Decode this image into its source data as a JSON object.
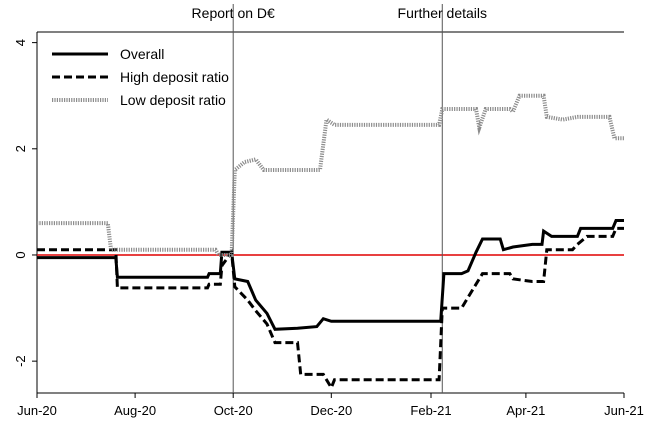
{
  "chart_data": {
    "type": "line",
    "x_ticks": [
      "Jun-20",
      "Aug-20",
      "Oct-20",
      "Dec-20",
      "Feb-21",
      "Apr-21",
      "Jun-21"
    ],
    "y_ticks": [
      "-2",
      "0",
      "2",
      "4"
    ],
    "xlim": [
      "2020-06-01",
      "2021-06-01"
    ],
    "ylim": [
      -2.6,
      4.2
    ],
    "reference_line": {
      "y": 0,
      "color": "#e00000"
    },
    "annotations": [
      {
        "x": "2020-10-01",
        "label": "Report on D€"
      },
      {
        "x": "2021-02-08",
        "label": "Further details"
      }
    ],
    "legend_position": "top-left",
    "grid": false,
    "series": [
      {
        "name": "Overall",
        "style": "solid",
        "color": "#000000",
        "points": [
          [
            "2020-06-01",
            -0.05
          ],
          [
            "2020-07-20",
            -0.05
          ],
          [
            "2020-07-21",
            -0.42
          ],
          [
            "2020-09-15",
            -0.42
          ],
          [
            "2020-09-16",
            -0.35
          ],
          [
            "2020-09-23",
            -0.35
          ],
          [
            "2020-09-24",
            0.05
          ],
          [
            "2020-09-30",
            0.05
          ],
          [
            "2020-10-02",
            -0.45
          ],
          [
            "2020-10-10",
            -0.5
          ],
          [
            "2020-10-15",
            -0.85
          ],
          [
            "2020-10-22",
            -1.1
          ],
          [
            "2020-10-27",
            -1.4
          ],
          [
            "2020-11-10",
            -1.38
          ],
          [
            "2020-11-22",
            -1.35
          ],
          [
            "2020-11-26",
            -1.2
          ],
          [
            "2020-12-01",
            -1.25
          ],
          [
            "2021-02-05",
            -1.25
          ],
          [
            "2021-02-07",
            -1.25
          ],
          [
            "2021-02-09",
            -0.35
          ],
          [
            "2021-02-20",
            -0.35
          ],
          [
            "2021-02-24",
            -0.3
          ],
          [
            "2021-03-01",
            0.05
          ],
          [
            "2021-03-05",
            0.3
          ],
          [
            "2021-03-16",
            0.3
          ],
          [
            "2021-03-18",
            0.1
          ],
          [
            "2021-03-24",
            0.15
          ],
          [
            "2021-04-05",
            0.2
          ],
          [
            "2021-04-11",
            0.2
          ],
          [
            "2021-04-12",
            0.45
          ],
          [
            "2021-04-17",
            0.35
          ],
          [
            "2021-05-03",
            0.35
          ],
          [
            "2021-05-05",
            0.5
          ],
          [
            "2021-05-25",
            0.5
          ],
          [
            "2021-05-27",
            0.65
          ],
          [
            "2021-06-01",
            0.65
          ]
        ]
      },
      {
        "name": "High deposit ratio",
        "style": "dashed",
        "color": "#000000",
        "points": [
          [
            "2020-06-01",
            0.1
          ],
          [
            "2020-07-20",
            0.1
          ],
          [
            "2020-07-21",
            -0.62
          ],
          [
            "2020-09-15",
            -0.62
          ],
          [
            "2020-09-16",
            -0.55
          ],
          [
            "2020-09-23",
            -0.55
          ],
          [
            "2020-09-24",
            -0.2
          ],
          [
            "2020-09-30",
            0.05
          ],
          [
            "2020-10-02",
            -0.6
          ],
          [
            "2020-10-10",
            -0.85
          ],
          [
            "2020-10-15",
            -1.05
          ],
          [
            "2020-10-22",
            -1.3
          ],
          [
            "2020-10-27",
            -1.65
          ],
          [
            "2020-11-10",
            -1.65
          ],
          [
            "2020-11-12",
            -2.25
          ],
          [
            "2020-11-26",
            -2.25
          ],
          [
            "2020-12-01",
            -2.5
          ],
          [
            "2020-12-03",
            -2.35
          ],
          [
            "2021-02-06",
            -2.35
          ],
          [
            "2021-02-08",
            -1.0
          ],
          [
            "2021-02-20",
            -1.0
          ],
          [
            "2021-02-24",
            -0.8
          ],
          [
            "2021-03-05",
            -0.35
          ],
          [
            "2021-03-22",
            -0.35
          ],
          [
            "2021-03-24",
            -0.45
          ],
          [
            "2021-04-05",
            -0.5
          ],
          [
            "2021-04-12",
            -0.5
          ],
          [
            "2021-04-14",
            0.1
          ],
          [
            "2021-04-30",
            0.1
          ],
          [
            "2021-05-03",
            0.2
          ],
          [
            "2021-05-09",
            0.35
          ],
          [
            "2021-05-25",
            0.35
          ],
          [
            "2021-05-27",
            0.5
          ],
          [
            "2021-06-01",
            0.5
          ]
        ]
      },
      {
        "name": "Low deposit ratio",
        "style": "dotted",
        "color": "#8c8c8c",
        "points": [
          [
            "2020-06-01",
            0.6
          ],
          [
            "2020-07-15",
            0.6
          ],
          [
            "2020-07-17",
            0.1
          ],
          [
            "2020-09-20",
            0.1
          ],
          [
            "2020-09-22",
            0.0
          ],
          [
            "2020-09-30",
            0.0
          ],
          [
            "2020-10-02",
            1.6
          ],
          [
            "2020-10-08",
            1.75
          ],
          [
            "2020-10-15",
            1.8
          ],
          [
            "2020-10-20",
            1.6
          ],
          [
            "2020-11-24",
            1.6
          ],
          [
            "2020-11-28",
            2.55
          ],
          [
            "2020-12-03",
            2.45
          ],
          [
            "2021-02-06",
            2.45
          ],
          [
            "2021-02-08",
            2.75
          ],
          [
            "2021-03-01",
            2.75
          ],
          [
            "2021-03-03",
            2.4
          ],
          [
            "2021-03-07",
            2.75
          ],
          [
            "2021-03-22",
            2.75
          ],
          [
            "2021-03-24",
            2.7
          ],
          [
            "2021-03-28",
            3.0
          ],
          [
            "2021-04-12",
            3.0
          ],
          [
            "2021-04-14",
            2.6
          ],
          [
            "2021-04-24",
            2.55
          ],
          [
            "2021-05-03",
            2.6
          ],
          [
            "2021-05-23",
            2.6
          ],
          [
            "2021-05-26",
            2.2
          ],
          [
            "2021-06-01",
            2.2
          ]
        ]
      }
    ]
  }
}
